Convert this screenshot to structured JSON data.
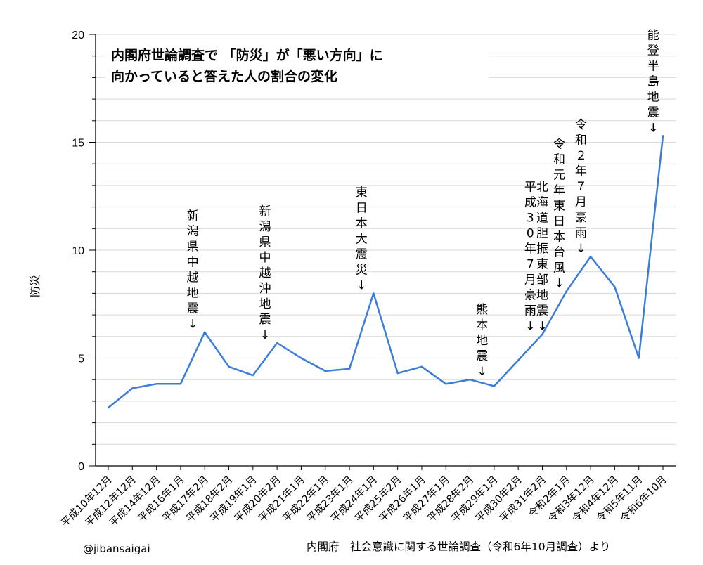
{
  "title": {
    "line1": "内閣府世論調査で 「防災」が「悪い方向」に",
    "line2": "向かっていると答えた人の割合の変化"
  },
  "credit": "@jibansaigai",
  "source": "内閣府　社会意識に関する世論調査（令和6年10月調査）より",
  "colors": {
    "line": "#3b7dd8",
    "grid": "#d9d9d9",
    "axis": "#000000"
  },
  "chart_data": {
    "type": "line",
    "ylabel": "防災",
    "ylim": [
      0,
      20
    ],
    "yticks": [
      0,
      5,
      10,
      15,
      20
    ],
    "grid": "horizontal",
    "categories": [
      "平成10年12月",
      "平成12年12月",
      "平成14年12月",
      "平成16年1月",
      "平成17年2月",
      "平成18年2月",
      "平成19年1月",
      "平成20年2月",
      "平成21年1月",
      "平成22年1月",
      "平成23年1月",
      "平成24年1月",
      "平成25年2月",
      "平成26年1月",
      "平成27年1月",
      "平成28年2月",
      "平成29年1月",
      "平成30年2月",
      "平成31年2月",
      "令和2年1月",
      "令和3年12月",
      "令和4年12月",
      "令和5年11月",
      "令和6年10月"
    ],
    "series": [
      {
        "values": [
          2.7,
          3.6,
          3.8,
          3.8,
          6.2,
          4.6,
          4.2,
          5.7,
          5.0,
          4.4,
          4.5,
          8.0,
          4.3,
          4.6,
          3.8,
          4.0,
          3.7,
          4.9,
          6.1,
          8.1,
          9.7,
          8.3,
          5.0,
          15.3
        ]
      }
    ],
    "annotations": [
      {
        "text": "新潟県中越地震↓",
        "category_index": 3.5
      },
      {
        "text": "新潟県中越沖地震↓",
        "category_index": 6.5
      },
      {
        "text": "東日本大震災↓",
        "category_index": 10.5
      },
      {
        "text": "熊本地震↓",
        "category_index": 15.5
      },
      {
        "text": "平成30年7月豪雨↓",
        "category_index": 17.5
      },
      {
        "text": "北海道胆振東部地震↓",
        "category_index": 18
      },
      {
        "text": "令和元年東日本台風↓",
        "category_index": 18.7
      },
      {
        "text": "令和２年７月豪雨↓",
        "category_index": 19.6
      },
      {
        "text": "能登半島地震↓",
        "category_index": 22.6
      }
    ]
  }
}
